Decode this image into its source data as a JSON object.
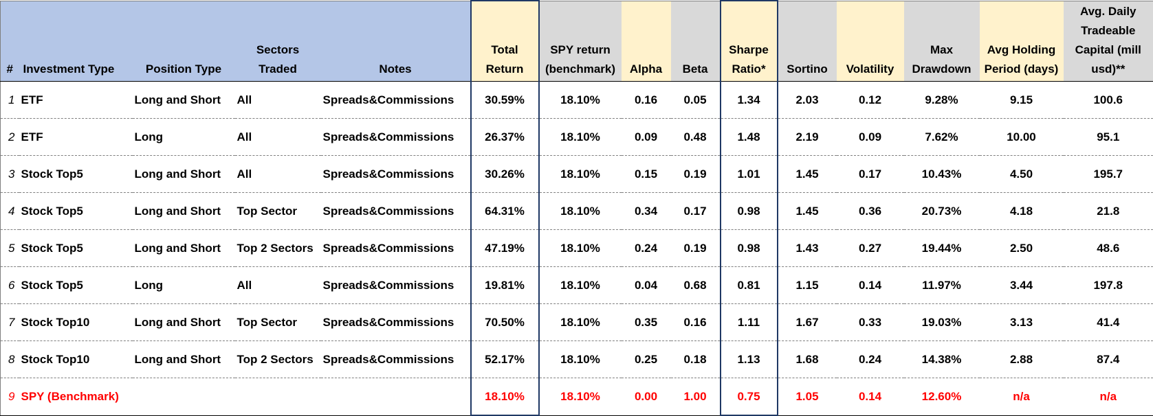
{
  "headers": {
    "num": "#",
    "investment_type": "Investment Type",
    "position_type": "Position Type",
    "sectors_traded": "Sectors Traded",
    "notes": "Notes",
    "total_return": "Total Return",
    "spy_return": "SPY return (benchmark)",
    "alpha": "Alpha",
    "beta": "Beta",
    "sharpe": "Sharpe Ratio*",
    "sortino": "Sortino",
    "volatility": "Volatility",
    "max_drawdown": "Max Drawdown",
    "avg_holding": "Avg Holding Period (days)",
    "avg_capital": "Avg. Daily Tradeable Capital (mill usd)**"
  },
  "rows": [
    {
      "num": "1",
      "investment_type": "ETF",
      "position_type": "Long and Short",
      "sectors": "All",
      "notes": "Spreads&Commissions",
      "total_return": "30.59%",
      "spy_return": "18.10%",
      "alpha": "0.16",
      "beta": "0.05",
      "sharpe": "1.34",
      "sortino": "2.03",
      "volatility": "0.12",
      "max_drawdown": "9.28%",
      "avg_holding": "9.15",
      "avg_capital": "100.6"
    },
    {
      "num": "2",
      "investment_type": "ETF",
      "position_type": "Long",
      "sectors": "All",
      "notes": "Spreads&Commissions",
      "total_return": "26.37%",
      "spy_return": "18.10%",
      "alpha": "0.09",
      "beta": "0.48",
      "sharpe": "1.48",
      "sortino": "2.19",
      "volatility": "0.09",
      "max_drawdown": "7.62%",
      "avg_holding": "10.00",
      "avg_capital": "95.1"
    },
    {
      "num": "3",
      "investment_type": "Stock Top5",
      "position_type": "Long and Short",
      "sectors": "All",
      "notes": "Spreads&Commissions",
      "total_return": "30.26%",
      "spy_return": "18.10%",
      "alpha": "0.15",
      "beta": "0.19",
      "sharpe": "1.01",
      "sortino": "1.45",
      "volatility": "0.17",
      "max_drawdown": "10.43%",
      "avg_holding": "4.50",
      "avg_capital": "195.7"
    },
    {
      "num": "4",
      "investment_type": "Stock Top5",
      "position_type": "Long and Short",
      "sectors": "Top Sector",
      "notes": "Spreads&Commissions",
      "total_return": "64.31%",
      "spy_return": "18.10%",
      "alpha": "0.34",
      "beta": "0.17",
      "sharpe": "0.98",
      "sortino": "1.45",
      "volatility": "0.36",
      "max_drawdown": "20.73%",
      "avg_holding": "4.18",
      "avg_capital": "21.8"
    },
    {
      "num": "5",
      "investment_type": "Stock Top5",
      "position_type": "Long and Short",
      "sectors": "Top 2 Sectors",
      "notes": "Spreads&Commissions",
      "total_return": "47.19%",
      "spy_return": "18.10%",
      "alpha": "0.24",
      "beta": "0.19",
      "sharpe": "0.98",
      "sortino": "1.43",
      "volatility": "0.27",
      "max_drawdown": "19.44%",
      "avg_holding": "2.50",
      "avg_capital": "48.6"
    },
    {
      "num": "6",
      "investment_type": "Stock Top5",
      "position_type": "Long",
      "sectors": "All",
      "notes": "Spreads&Commissions",
      "total_return": "19.81%",
      "spy_return": "18.10%",
      "alpha": "0.04",
      "beta": "0.68",
      "sharpe": "0.81",
      "sortino": "1.15",
      "volatility": "0.14",
      "max_drawdown": "11.97%",
      "avg_holding": "3.44",
      "avg_capital": "197.8"
    },
    {
      "num": "7",
      "investment_type": "Stock Top10",
      "position_type": "Long and Short",
      "sectors": "Top Sector",
      "notes": "Spreads&Commissions",
      "total_return": "70.50%",
      "spy_return": "18.10%",
      "alpha": "0.35",
      "beta": "0.16",
      "sharpe": "1.11",
      "sortino": "1.67",
      "volatility": "0.33",
      "max_drawdown": "19.03%",
      "avg_holding": "3.13",
      "avg_capital": "41.4"
    },
    {
      "num": "8",
      "investment_type": "Stock Top10",
      "position_type": "Long and Short",
      "sectors": "Top 2 Sectors",
      "notes": "Spreads&Commissions",
      "total_return": "52.17%",
      "spy_return": "18.10%",
      "alpha": "0.25",
      "beta": "0.18",
      "sharpe": "1.13",
      "sortino": "1.68",
      "volatility": "0.24",
      "max_drawdown": "14.38%",
      "avg_holding": "2.88",
      "avg_capital": "87.4"
    },
    {
      "num": "9",
      "investment_type": "SPY (Benchmark)",
      "position_type": "",
      "sectors": "",
      "notes": "",
      "total_return": "18.10%",
      "spy_return": "18.10%",
      "alpha": "0.00",
      "beta": "1.00",
      "sharpe": "0.75",
      "sortino": "1.05",
      "volatility": "0.14",
      "max_drawdown": "12.60%",
      "avg_holding": "n/a",
      "avg_capital": "n/a"
    }
  ],
  "colors": {
    "header_blue": "#b4c6e7",
    "header_cream": "#fff2cc",
    "header_grey": "#d9d9d9",
    "highlight_box": "#1f3864",
    "benchmark_text": "#ff0000"
  }
}
